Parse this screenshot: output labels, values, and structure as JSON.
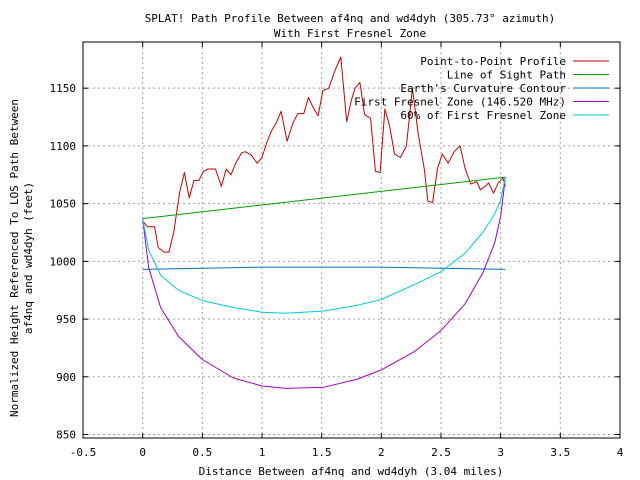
{
  "chart_data": {
    "type": "line",
    "title": "SPLAT! Path Profile Between af4nq and wd4dyh (305.73° azimuth)",
    "subtitle": "With First Fresnel Zone",
    "xlabel": "Distance Between af4nq and wd4dyh (3.04 miles)",
    "ylabel_line1": "Normalized Height Referenced To LOS Path Between",
    "ylabel_line2": "af4nq and wd4dyh (feet)",
    "xlim": [
      -0.5,
      4
    ],
    "ylim": [
      847,
      1190
    ],
    "x_ticks": [
      -0.5,
      0,
      0.5,
      1,
      1.5,
      2,
      2.5,
      3,
      3.5,
      4
    ],
    "x_tick_labels": [
      "-0.5",
      "0",
      "0.5",
      "1",
      "1.5",
      "2",
      "2.5",
      "3",
      "3.5",
      "4"
    ],
    "y_ticks": [
      850,
      900,
      950,
      1000,
      1050,
      1100,
      1150
    ],
    "y_tick_labels": [
      "850",
      "900",
      "950",
      "1000",
      "1050",
      "1100",
      "1150"
    ],
    "grid": true,
    "legend_position": "top-right",
    "series": [
      {
        "name": "Point-to-Point Profile",
        "color": "#cc0000",
        "x": [
          0,
          0.04,
          0.1,
          0.13,
          0.18,
          0.22,
          0.26,
          0.31,
          0.35,
          0.39,
          0.43,
          0.47,
          0.51,
          0.55,
          0.61,
          0.66,
          0.7,
          0.74,
          0.78,
          0.83,
          0.86,
          0.91,
          0.96,
          1.0,
          1.04,
          1.08,
          1.12,
          1.16,
          1.21,
          1.26,
          1.3,
          1.35,
          1.39,
          1.43,
          1.47,
          1.51,
          1.56,
          1.61,
          1.66,
          1.71,
          1.75,
          1.78,
          1.82,
          1.86,
          1.91,
          1.95,
          1.99,
          2.03,
          2.07,
          2.11,
          2.16,
          2.21,
          2.26,
          2.31,
          2.36,
          2.39,
          2.43,
          2.47,
          2.51,
          2.56,
          2.61,
          2.66,
          2.7,
          2.75,
          2.8,
          2.83,
          2.87,
          2.9,
          2.94,
          2.98,
          3.02,
          3.04
        ],
        "y": [
          1035,
          1030,
          1030,
          1012,
          1008,
          1008,
          1025,
          1060,
          1077,
          1055,
          1070,
          1070,
          1078,
          1080,
          1080,
          1065,
          1080,
          1075,
          1085,
          1094,
          1095,
          1092,
          1085,
          1090,
          1103,
          1113,
          1120,
          1130,
          1104,
          1120,
          1128,
          1128,
          1142,
          1133,
          1126,
          1148,
          1150,
          1165,
          1177,
          1121,
          1140,
          1150,
          1155,
          1127,
          1124,
          1078,
          1077,
          1132,
          1117,
          1093,
          1090,
          1100,
          1150,
          1110,
          1080,
          1052,
          1051,
          1080,
          1093,
          1085,
          1095,
          1100,
          1081,
          1067,
          1069,
          1062,
          1065,
          1068,
          1059,
          1068,
          1072,
          1065
        ]
      },
      {
        "name": "Line of Sight Path",
        "color": "#00a000",
        "x": [
          0,
          3.04
        ],
        "y": [
          1037,
          1073
        ]
      },
      {
        "name": "Earth's Curvature Contour",
        "color": "#0070c0",
        "x": [
          0,
          0.5,
          1.0,
          1.52,
          2.0,
          2.5,
          3.04
        ],
        "y": [
          993,
          994,
          995,
          995,
          995,
          994,
          993
        ]
      },
      {
        "name": "First Fresnel Zone (146.520 MHz)",
        "color": "#a000c0",
        "x": [
          0,
          0.05,
          0.15,
          0.3,
          0.5,
          0.76,
          1.0,
          1.2,
          1.52,
          1.8,
          2.0,
          2.28,
          2.5,
          2.7,
          2.85,
          2.95,
          3.0,
          3.04
        ],
        "y": [
          1037,
          995,
          960,
          935,
          915,
          899,
          892,
          890,
          891,
          898,
          906,
          922,
          940,
          963,
          990,
          1016,
          1039,
          1073
        ]
      },
      {
        "name": "60% of First Fresnel Zone",
        "color": "#00c8e0",
        "x": [
          0,
          0.05,
          0.15,
          0.3,
          0.5,
          0.76,
          1.0,
          1.2,
          1.52,
          1.8,
          2.0,
          2.28,
          2.5,
          2.7,
          2.85,
          2.95,
          3.0,
          3.04
        ],
        "y": [
          1037,
          1010,
          988,
          975,
          966,
          960,
          956,
          955,
          957,
          962,
          967,
          980,
          991,
          1007,
          1025,
          1041,
          1053,
          1073
        ]
      }
    ]
  }
}
